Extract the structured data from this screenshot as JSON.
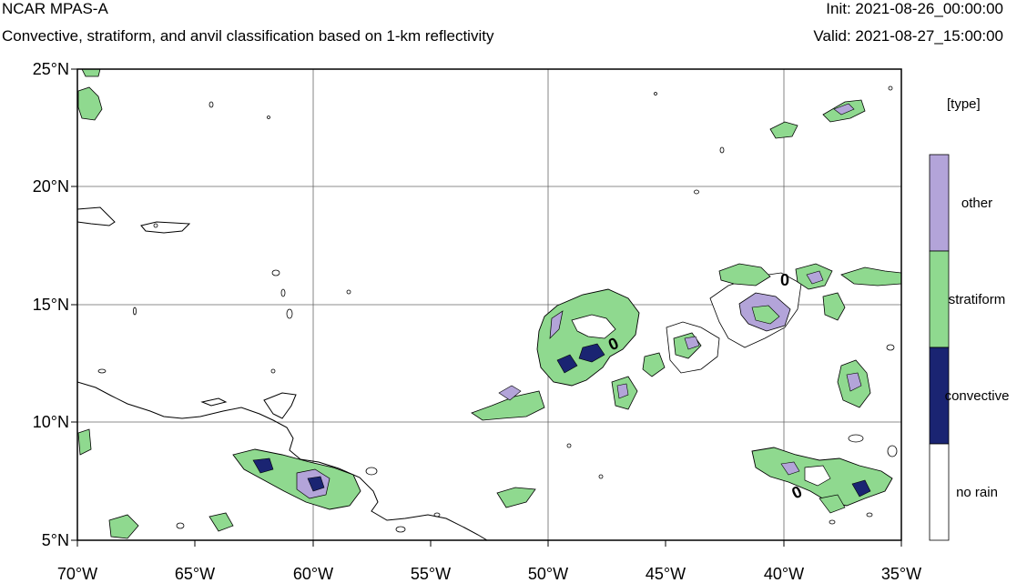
{
  "header": {
    "title": "NCAR MPAS-A",
    "subtitle": "Convective, stratiform, and anvil classification based on 1-km reflectivity",
    "init": "Init: 2021-08-26_00:00:00",
    "valid": "Valid: 2021-08-27_15:00:00"
  },
  "map": {
    "lon_range": [
      -70,
      -35
    ],
    "lat_range": [
      5,
      25
    ],
    "lat_ticks": [
      "25°N",
      "20°N",
      "15°N",
      "10°N",
      "5°N"
    ],
    "lon_ticks": [
      "70°W",
      "65°W",
      "60°W",
      "55°W",
      "50°W",
      "45°W",
      "40°W",
      "35°W"
    ],
    "grid": true,
    "contour_labels": [
      "0",
      "0",
      "0"
    ]
  },
  "legend": {
    "title": "[type]",
    "items": [
      {
        "label": "other",
        "color": "#b3a4d9"
      },
      {
        "label": "stratiform",
        "color": "#8fd98f"
      },
      {
        "label": "convective",
        "color": "#1a2472"
      },
      {
        "label": "no rain",
        "color": "#ffffff"
      }
    ]
  },
  "colors": {
    "grid": "#666666",
    "coast": "#000000"
  }
}
